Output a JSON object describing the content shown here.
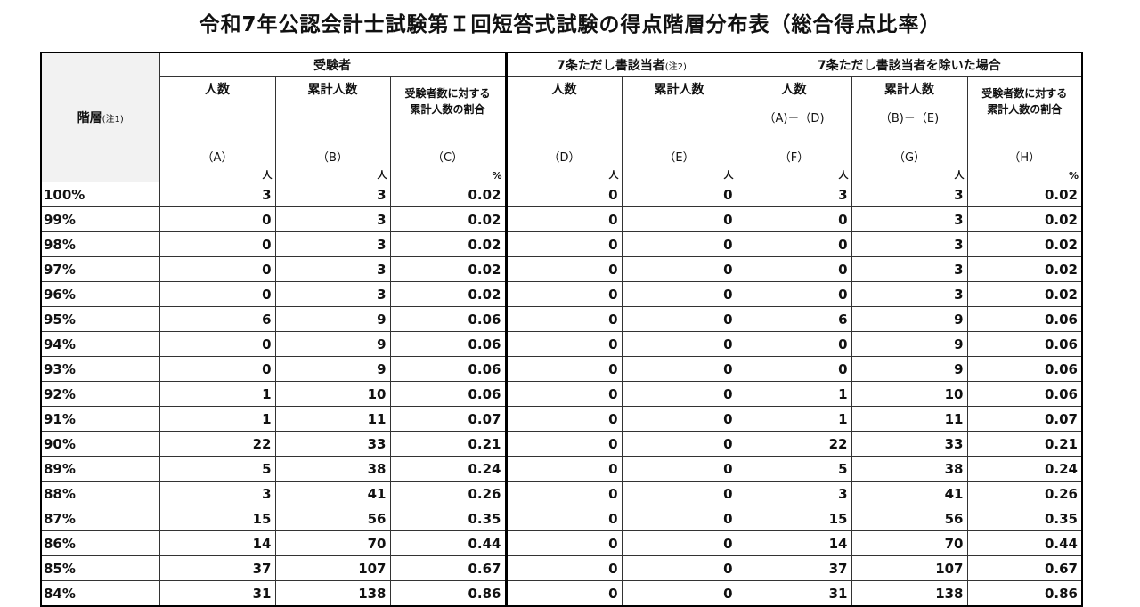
{
  "title": "令和7年公認会計士試験第Ｉ回短答式試験の得点階層分布表（総合得点比率）",
  "table": {
    "stub": {
      "label": "階層",
      "note": "(注1)"
    },
    "groups": [
      {
        "label": "受験者",
        "note": null
      },
      {
        "label": "7条ただし書該当者",
        "note": "(注2)"
      },
      {
        "label": "7条ただし書該当者を除いた場合",
        "note": null
      }
    ],
    "columns": [
      {
        "title": [
          "人数"
        ],
        "formula": null,
        "code": "（A）",
        "unit": "人"
      },
      {
        "title": [
          "累計人数"
        ],
        "formula": null,
        "code": "（B）",
        "unit": "人"
      },
      {
        "title": [
          "受験者数に対する",
          "累計人数の割合"
        ],
        "formula": null,
        "code": "（C）",
        "unit": "%"
      },
      {
        "title": [
          "人数"
        ],
        "formula": null,
        "code": "（D）",
        "unit": "人"
      },
      {
        "title": [
          "累計人数"
        ],
        "formula": null,
        "code": "（E）",
        "unit": "人"
      },
      {
        "title": [
          "人数"
        ],
        "formula": "（A)－（D)",
        "code": "（F）",
        "unit": "人"
      },
      {
        "title": [
          "累計人数"
        ],
        "formula": "（B)－（E)",
        "code": "（G）",
        "unit": "人"
      },
      {
        "title": [
          "受験者数に対する",
          "累計人数の割合"
        ],
        "formula": null,
        "code": "（H）",
        "unit": "%"
      }
    ],
    "rows": [
      [
        "100%",
        "3",
        "3",
        "0.02",
        "0",
        "0",
        "3",
        "3",
        "0.02"
      ],
      [
        "99%",
        "0",
        "3",
        "0.02",
        "0",
        "0",
        "0",
        "3",
        "0.02"
      ],
      [
        "98%",
        "0",
        "3",
        "0.02",
        "0",
        "0",
        "0",
        "3",
        "0.02"
      ],
      [
        "97%",
        "0",
        "3",
        "0.02",
        "0",
        "0",
        "0",
        "3",
        "0.02"
      ],
      [
        "96%",
        "0",
        "3",
        "0.02",
        "0",
        "0",
        "0",
        "3",
        "0.02"
      ],
      [
        "95%",
        "6",
        "9",
        "0.06",
        "0",
        "0",
        "6",
        "9",
        "0.06"
      ],
      [
        "94%",
        "0",
        "9",
        "0.06",
        "0",
        "0",
        "0",
        "9",
        "0.06"
      ],
      [
        "93%",
        "0",
        "9",
        "0.06",
        "0",
        "0",
        "0",
        "9",
        "0.06"
      ],
      [
        "92%",
        "1",
        "10",
        "0.06",
        "0",
        "0",
        "1",
        "10",
        "0.06"
      ],
      [
        "91%",
        "1",
        "11",
        "0.07",
        "0",
        "0",
        "1",
        "11",
        "0.07"
      ],
      [
        "90%",
        "22",
        "33",
        "0.21",
        "0",
        "0",
        "22",
        "33",
        "0.21"
      ],
      [
        "89%",
        "5",
        "38",
        "0.24",
        "0",
        "0",
        "5",
        "38",
        "0.24"
      ],
      [
        "88%",
        "3",
        "41",
        "0.26",
        "0",
        "0",
        "3",
        "41",
        "0.26"
      ],
      [
        "87%",
        "15",
        "56",
        "0.35",
        "0",
        "0",
        "15",
        "56",
        "0.35"
      ],
      [
        "86%",
        "14",
        "70",
        "0.44",
        "0",
        "0",
        "14",
        "70",
        "0.44"
      ],
      [
        "85%",
        "37",
        "107",
        "0.67",
        "0",
        "0",
        "37",
        "107",
        "0.67"
      ],
      [
        "84%",
        "31",
        "138",
        "0.86",
        "0",
        "0",
        "31",
        "138",
        "0.86"
      ]
    ]
  }
}
